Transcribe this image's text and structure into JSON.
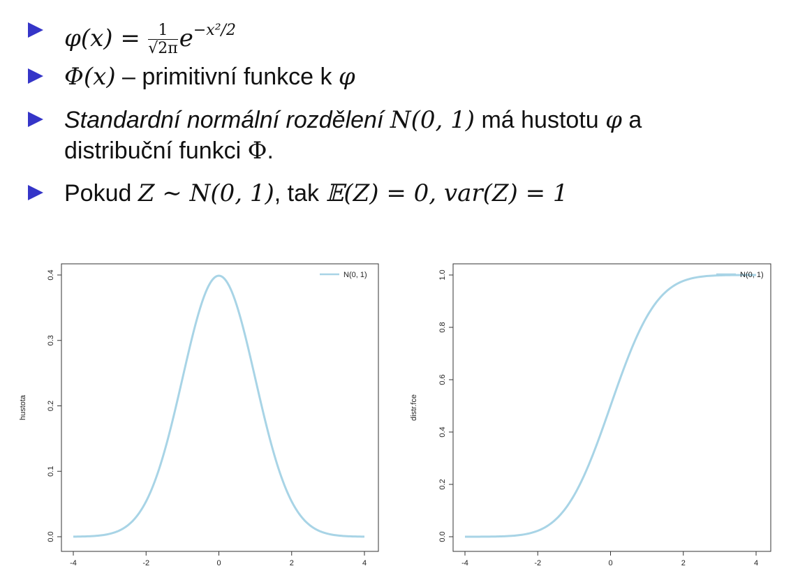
{
  "bullets": [
    {
      "formula_lhs": "φ(x) =",
      "frac_num": "1",
      "frac_den": "√2π",
      "exp_base": "e",
      "exp_sup": "−x²/2"
    },
    {
      "sym": "Φ(x)",
      "text": " – primitivní funkce k ",
      "sym2": "φ"
    },
    {
      "italic": "Standardní normální rozdělení",
      "sym": "N(0, 1)",
      "text1": " má hustotu ",
      "sym2": "φ",
      "text2": " a",
      "line2": "distribuční funkci ",
      "sym3": "Φ",
      "end": "."
    },
    {
      "text1": "Pokud ",
      "m1": "Z ∼ N(0, 1)",
      "text2": ", tak ",
      "m2": "𝔼(Z) = 0, var(Z) = 1"
    }
  ],
  "chart_data": [
    {
      "type": "line",
      "ylabel": "hustota",
      "xlabel": "",
      "xlim": [
        -4,
        4
      ],
      "ylim": [
        0,
        0.4
      ],
      "x_ticks": [
        "-4",
        "-2",
        "0",
        "2",
        "4"
      ],
      "y_ticks": [
        "0.0",
        "0.1",
        "0.2",
        "0.3",
        "0.4"
      ],
      "legend": "N(0, 1)",
      "legend_position": "top-right",
      "series": [
        {
          "name": "N(0, 1)",
          "color": "#a8d4e6",
          "x": [
            -4,
            -3.5,
            -3,
            -2.5,
            -2,
            -1.5,
            -1,
            -0.5,
            0,
            0.5,
            1,
            1.5,
            2,
            2.5,
            3,
            3.5,
            4
          ],
          "y": [
            0.0001,
            0.0009,
            0.0044,
            0.0175,
            0.054,
            0.1295,
            0.242,
            0.3521,
            0.3989,
            0.3521,
            0.242,
            0.1295,
            0.054,
            0.0175,
            0.0044,
            0.0009,
            0.0001
          ]
        }
      ]
    },
    {
      "type": "line",
      "ylabel": "distr.fce",
      "xlabel": "",
      "xlim": [
        -4,
        4
      ],
      "ylim": [
        0,
        1
      ],
      "x_ticks": [
        "-4",
        "-2",
        "0",
        "2",
        "4"
      ],
      "y_ticks": [
        "0.0",
        "0.2",
        "0.4",
        "0.6",
        "0.8",
        "1.0"
      ],
      "legend": "N(0, 1)",
      "legend_position": "top-right",
      "series": [
        {
          "name": "N(0, 1)",
          "color": "#a8d4e6",
          "x": [
            -4,
            -3.5,
            -3,
            -2.5,
            -2,
            -1.5,
            -1,
            -0.5,
            0,
            0.5,
            1,
            1.5,
            2,
            2.5,
            3,
            3.5,
            4
          ],
          "y": [
            3e-05,
            0.0002,
            0.0013,
            0.0062,
            0.0228,
            0.0668,
            0.1587,
            0.3085,
            0.5,
            0.6915,
            0.8413,
            0.9332,
            0.9772,
            0.9938,
            0.9987,
            0.9998,
            0.99997
          ]
        }
      ]
    }
  ],
  "colors": {
    "bullet": "#3535c8",
    "curve": "#a8d4e6"
  }
}
